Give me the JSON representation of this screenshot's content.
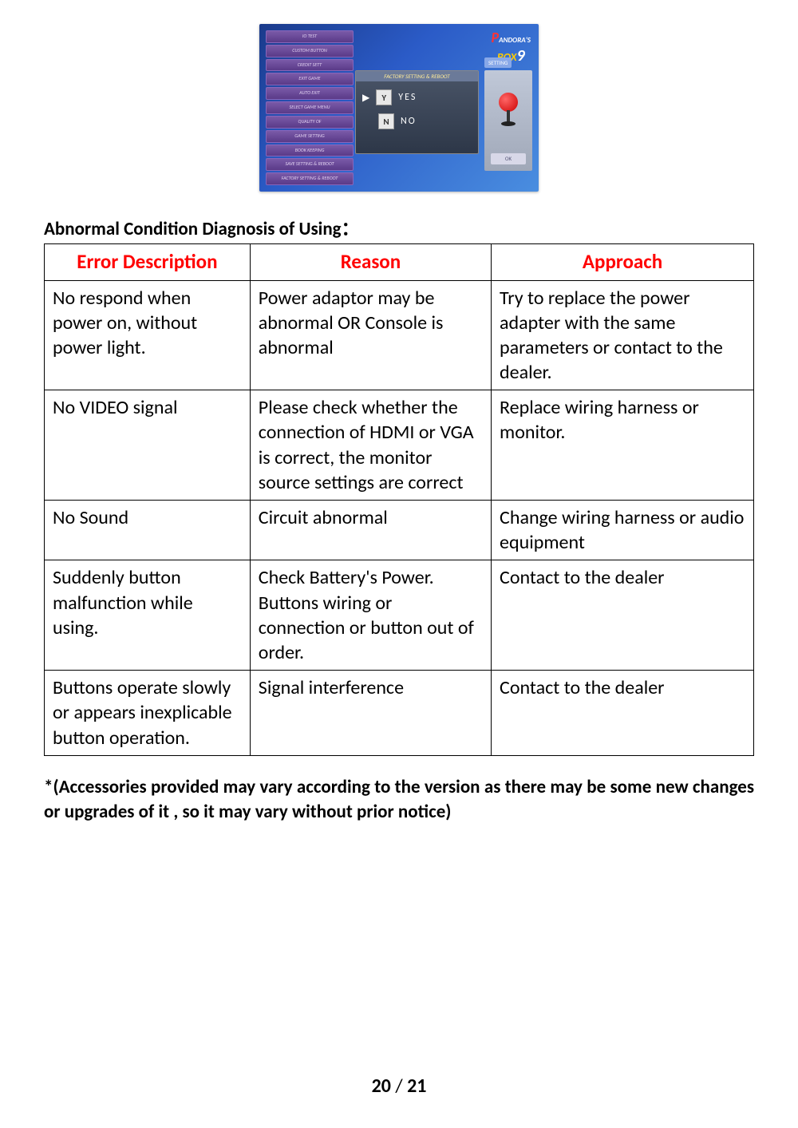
{
  "screenshot": {
    "logo_text": "PANDORA'S BOX 9",
    "menu_items": [
      "IO TEST",
      "CUSTOM BUTTON",
      "CREDIT SETT",
      "EXIT GAME",
      "AUTO EXIT",
      "SELECT GAME MENU",
      "QUALITY OF",
      "GAME SETTING",
      "BOOK KEEPING",
      "SAVE SETTING & REBOOT",
      "FACTORY SETTING & REBOOT"
    ],
    "dialog_title": "FACTORY SETTING & REBOOT",
    "yes_key": "Y",
    "yes_label": "YES",
    "no_key": "N",
    "no_label": "NO",
    "right_tab": "SETTING",
    "ok_label": "OK",
    "colors": {
      "bg_start": "#1a3a8a",
      "bg_end": "#4a8ee0",
      "menu_bg": "#5a3a88",
      "joystick": "#cc0000"
    }
  },
  "section_title": "Abnormal Condition Diagnosis of Using：",
  "table": {
    "headers": [
      "Error Description",
      "Reason",
      "Approach"
    ],
    "header_color": "#ff0000",
    "border_color": "#000000",
    "rows": [
      {
        "error": "No respond when power on, without power light.",
        "reason": "Power adaptor may be abnormal OR Console is abnormal",
        "approach": "Try to replace the power adapter with the same parameters or contact to the dealer."
      },
      {
        "error": "No VIDEO signal",
        "reason": "Please check whether the connection of HDMI or VGA is correct, the monitor source settings are correct",
        "approach": "Replace wiring harness or monitor."
      },
      {
        "error": "No Sound",
        "reason": "Circuit abnormal",
        "approach": "Change wiring harness or audio equipment"
      },
      {
        "error": "Suddenly button malfunction while using.",
        "reason": "Check Battery's Power.\nButtons wiring or connection or button out of order.",
        "approach": "Contact to the dealer"
      },
      {
        "error": "Buttons operate slowly or appears inexplicable button operation.",
        "reason": "Signal interference",
        "approach": "Contact to the dealer"
      }
    ]
  },
  "footnote": "*(Accessories provided may vary according to the   version as   there may be some new changes or upgrades of it , so it  may  vary without prior notice)",
  "page": {
    "current": "20",
    "total": "21",
    "separator": "/"
  }
}
